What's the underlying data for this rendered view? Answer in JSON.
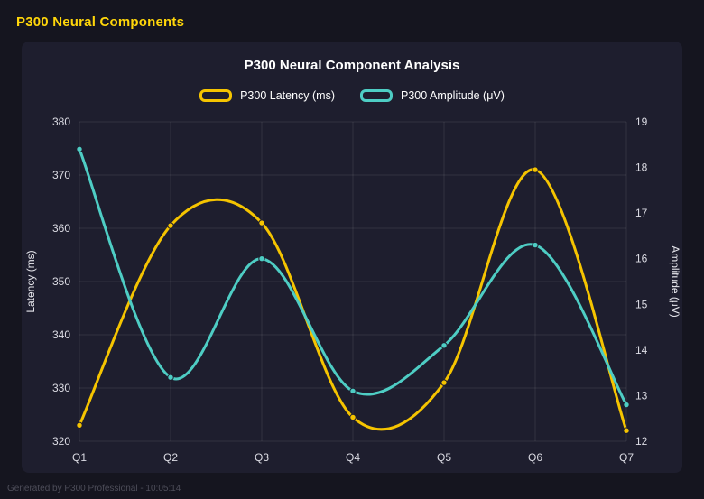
{
  "window": {
    "title": "P300 Neural Components",
    "footer": "Generated by P300 Professional - 10:05:14"
  },
  "chart_data": {
    "type": "line",
    "title": "P300 Neural Component Analysis",
    "categories": [
      "Q1",
      "Q2",
      "Q3",
      "Q4",
      "Q5",
      "Q6",
      "Q7"
    ],
    "series": [
      {
        "name": "P300 Latency (ms)",
        "axis": "left",
        "color": "#f5c400",
        "values": [
          323,
          360.5,
          361,
          324.5,
          331,
          371,
          322
        ]
      },
      {
        "name": "P300 Amplitude (μV)",
        "axis": "right",
        "color": "#4ecdc4",
        "values": [
          18.4,
          13.4,
          16.0,
          13.1,
          14.1,
          16.3,
          12.8
        ]
      }
    ],
    "axes": {
      "left": {
        "label": "Latency (ms)",
        "min": 320,
        "max": 380,
        "ticks": [
          320,
          330,
          340,
          350,
          360,
          370,
          380
        ]
      },
      "right": {
        "label": "Amplitude (μV)",
        "min": 12,
        "max": 19,
        "ticks": [
          12,
          13,
          14,
          15,
          16,
          17,
          18,
          19
        ]
      }
    },
    "grid": true,
    "legend_position": "top",
    "line_style": "smooth"
  },
  "colors": {
    "page_bg": "#15151f",
    "panel_bg": "#1e1e2e",
    "header_text": "#ffd60a",
    "title_text": "#ffffff",
    "tick_text": "#dcdce4",
    "axis_label_text": "#e8e8ee",
    "grid_line": "rgba(255,255,255,0.09)",
    "footer_text": "#4d4d59"
  }
}
